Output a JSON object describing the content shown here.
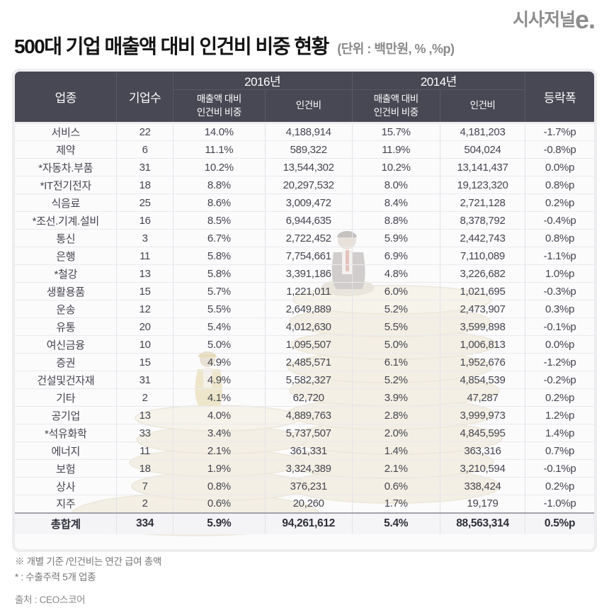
{
  "header": {
    "title": "500대 기업 매출액 대비 인건비 비중 현황",
    "unit": "(단위 : 백만원, % ,%p)",
    "logo_text": "시사저널",
    "logo_e": "e."
  },
  "table": {
    "header": {
      "industry": "업종",
      "company_count": "기업수",
      "year_2016": "2016년",
      "year_2014": "2014년",
      "ratio": "매출액 대비\n인건비 비중",
      "labor_cost": "인건비",
      "change": "등락폭"
    }
  },
  "chart_data": {
    "type": "table",
    "title": "500대 기업 매출액 대비 인건비 비중 현황",
    "unit": "백만원, %, %p",
    "columns": [
      "업종",
      "기업수",
      "2016년 매출액 대비 인건비 비중",
      "2016년 인건비",
      "2014년 매출액 대비 인건비 비중",
      "2014년 인건비",
      "등락폭"
    ],
    "rows": [
      [
        "서비스",
        "22",
        "14.0%",
        "4,188,914",
        "15.7%",
        "4,181,203",
        "-1.7%p"
      ],
      [
        "제약",
        "6",
        "11.1%",
        "589,322",
        "11.9%",
        "504,024",
        "-0.8%p"
      ],
      [
        "*자동차.부품",
        "31",
        "10.2%",
        "13,544,302",
        "10.2%",
        "13,141,437",
        "0.0%p"
      ],
      [
        "*IT전기전자",
        "18",
        "8.8%",
        "20,297,532",
        "8.0%",
        "19,123,320",
        "0.8%p"
      ],
      [
        "식음료",
        "25",
        "8.6%",
        "3,009,472",
        "8.4%",
        "2,721,128",
        "0.2%p"
      ],
      [
        "*조선.기계.설비",
        "16",
        "8.5%",
        "6,944,635",
        "8.8%",
        "8,378,792",
        "-0.4%p"
      ],
      [
        "통신",
        "3",
        "6.7%",
        "2,722,452",
        "5.9%",
        "2,442,743",
        "0.8%p"
      ],
      [
        "은행",
        "11",
        "5.8%",
        "7,754,661",
        "6.9%",
        "7,110,089",
        "-1.1%p"
      ],
      [
        "*철강",
        "13",
        "5.8%",
        "3,391,186",
        "4.8%",
        "3,226,682",
        "1.0%p"
      ],
      [
        "생활용품",
        "15",
        "5.7%",
        "1,221,011",
        "6.0%",
        "1,021,695",
        "-0.3%p"
      ],
      [
        "운송",
        "12",
        "5.5%",
        "2,649,889",
        "5.2%",
        "2,473,907",
        "0.3%p"
      ],
      [
        "유통",
        "20",
        "5.4%",
        "4,012,630",
        "5.5%",
        "3,599,898",
        "-0.1%p"
      ],
      [
        "여신금융",
        "10",
        "5.0%",
        "1,095,507",
        "5.0%",
        "1,006,813",
        "0.0%p"
      ],
      [
        "증권",
        "15",
        "4.9%",
        "2,485,571",
        "6.1%",
        "1,952,676",
        "-1.2%p"
      ],
      [
        "건설및건자재",
        "31",
        "4.9%",
        "5,582,327",
        "5.2%",
        "4,854,539",
        "-0.2%p"
      ],
      [
        "기타",
        "2",
        "4.1%",
        "62,720",
        "3.9%",
        "47,287",
        "0.2%p"
      ],
      [
        "공기업",
        "13",
        "4.0%",
        "4,889,763",
        "2.8%",
        "3,999,973",
        "1.2%p"
      ],
      [
        "*석유화학",
        "33",
        "3.4%",
        "5,737,507",
        "2.0%",
        "4,845,595",
        "1.4%p"
      ],
      [
        "에너지",
        "11",
        "2.1%",
        "361,331",
        "1.4%",
        "363,316",
        "0.7%p"
      ],
      [
        "보험",
        "18",
        "1.9%",
        "3,324,389",
        "2.1%",
        "3,210,594",
        "-0.1%p"
      ],
      [
        "상사",
        "7",
        "0.8%",
        "376,231",
        "0.6%",
        "338,424",
        "0.2%p"
      ],
      [
        "지주",
        "2",
        "0.6%",
        "20,260",
        "1.7%",
        "19,179",
        "-1.0%p"
      ]
    ],
    "total": [
      "총합계",
      "334",
      "5.9%",
      "94,261,612",
      "5.4%",
      "88,563,314",
      "0.5%p"
    ]
  },
  "footnotes": {
    "note1": "※ 개별 기준 /인건비는 연간 급여 총액",
    "note2": "* : 수출주력 5개 업종",
    "source": "출처 : CEO스코어"
  },
  "colors": {
    "header_bg": "#474853",
    "frame_bg": "#ededef",
    "body_text": "#45454f",
    "total_row_bg": "#f4f4f7",
    "muted_text": "#888888",
    "logo_gray": "#8d8d8d"
  }
}
